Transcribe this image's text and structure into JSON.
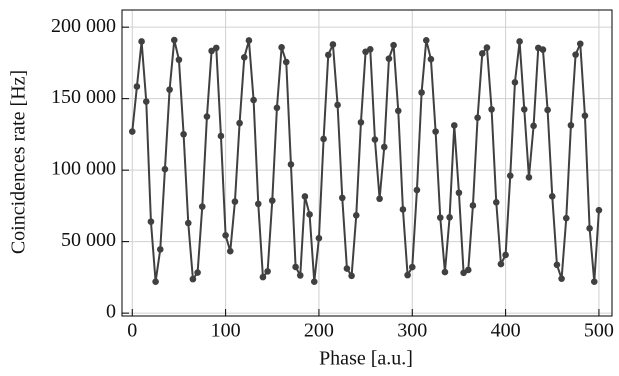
{
  "chart_data": {
    "type": "line",
    "xlabel": "Phase [a.u.]",
    "ylabel": "Coincidences rate [Hz]",
    "x": [
      0,
      5,
      10,
      15,
      20,
      25,
      30,
      35,
      40,
      45,
      50,
      55,
      60,
      65,
      70,
      75,
      80,
      85,
      90,
      95,
      100,
      105,
      110,
      115,
      120,
      125,
      130,
      135,
      140,
      145,
      150,
      155,
      160,
      165,
      170,
      175,
      180,
      185,
      190,
      195,
      200,
      205,
      210,
      215,
      220,
      225,
      230,
      235,
      240,
      245,
      250,
      255,
      260,
      265,
      270,
      275,
      280,
      285,
      290,
      295,
      300,
      305,
      310,
      315,
      320,
      325,
      330,
      335,
      340,
      345,
      350,
      355,
      360,
      365,
      370,
      375,
      380,
      385,
      390,
      395,
      400,
      405,
      410,
      415,
      420,
      425,
      430,
      435,
      440,
      445,
      450,
      455,
      460,
      465,
      470,
      475,
      480,
      485,
      490,
      495,
      500
    ],
    "values": [
      127000,
      158500,
      190000,
      148000,
      64000,
      22000,
      44600,
      100700,
      156300,
      191000,
      177200,
      125100,
      63000,
      23800,
      28400,
      74500,
      137500,
      183400,
      185500,
      123900,
      54400,
      43300,
      78000,
      132900,
      178900,
      190700,
      149000,
      76400,
      25200,
      29200,
      78700,
      143600,
      185900,
      175600,
      104000,
      32300,
      26400,
      81600,
      69000,
      22000,
      52400,
      121800,
      180600,
      187900,
      145600,
      80600,
      31200,
      26100,
      68400,
      133400,
      182800,
      184500,
      121400,
      80000,
      116200,
      178000,
      187400,
      141500,
      72500,
      26600,
      32200,
      86100,
      154300,
      190800,
      177600,
      127000,
      66800,
      28700,
      67000,
      131300,
      84200,
      28200,
      30200,
      75300,
      136700,
      181600,
      185700,
      142500,
      77500,
      34300,
      40700,
      96100,
      161400,
      190000,
      142500,
      95000,
      131000,
      185500,
      184300,
      142100,
      81700,
      33800,
      24100,
      66400,
      131400,
      180800,
      188400,
      138100,
      59300,
      22000,
      72000
    ],
    "color": "#404040",
    "xlim": [
      -11,
      514
    ],
    "ylim": [
      -2000,
      212000
    ],
    "xticks": [
      0,
      100,
      200,
      300,
      400,
      500
    ],
    "yticks": [
      0,
      {
        "value": 50000,
        "label": "50 000"
      },
      {
        "value": 100000,
        "label": "100 000"
      },
      {
        "value": 150000,
        "label": "150 000"
      },
      {
        "value": 200000,
        "label": "200 000"
      }
    ],
    "grid": true
  }
}
